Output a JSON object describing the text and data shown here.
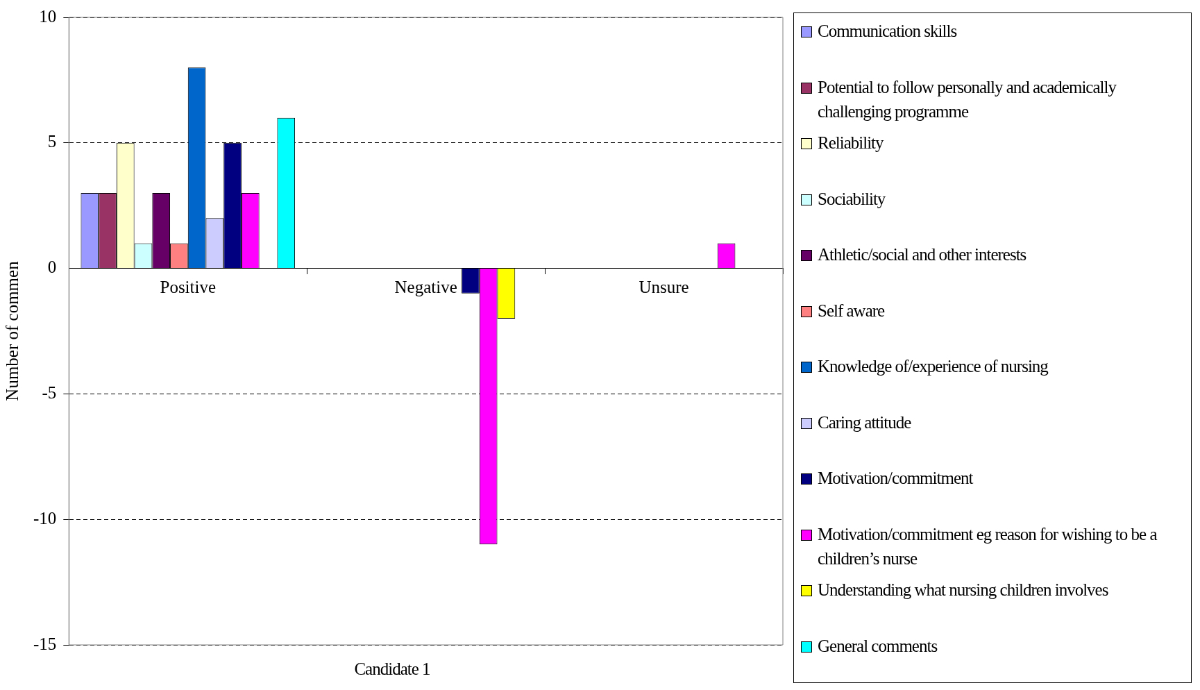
{
  "chart_data": {
    "type": "bar",
    "xlabel": "Candidate 1",
    "ylabel": "Number of commen",
    "categories": [
      "Positive",
      "Negative",
      "Unsure"
    ],
    "ylim": [
      -15,
      10
    ],
    "yticks": [
      -15,
      -10,
      -5,
      0,
      5,
      10
    ],
    "grid": "y",
    "line_style": "dashed",
    "legend": "right",
    "series": [
      {
        "name": "Communication skills",
        "color": "#9999ff",
        "values": [
          3,
          0,
          0
        ]
      },
      {
        "name": "Potential to follow personally and academically challenging programme",
        "color": "#993366",
        "values": [
          3,
          0,
          0
        ]
      },
      {
        "name": "Reliability",
        "color": "#ffffcc",
        "values": [
          5,
          0,
          0
        ]
      },
      {
        "name": "Sociability",
        "color": "#ccffff",
        "values": [
          1,
          0,
          0
        ]
      },
      {
        "name": "Athletic/social and other interests",
        "color": "#660066",
        "values": [
          3,
          0,
          0
        ]
      },
      {
        "name": "Self aware",
        "color": "#ff8080",
        "values": [
          1,
          0,
          0
        ]
      },
      {
        "name": "Knowledge of/experience of nursing",
        "color": "#0066cc",
        "values": [
          8,
          0,
          0
        ]
      },
      {
        "name": "Caring attitude",
        "color": "#ccccff",
        "values": [
          2,
          0,
          0
        ]
      },
      {
        "name": "Motivation/commitment",
        "color": "#000080",
        "values": [
          5,
          -1,
          0
        ]
      },
      {
        "name": "Motivation/commitment eg reason for wishing to be a children’s nurse",
        "color": "#ff00ff",
        "values": [
          3,
          -11,
          1
        ]
      },
      {
        "name": "Understanding what nursing children involves",
        "color": "#ffff00",
        "values": [
          0,
          -2,
          0
        ]
      },
      {
        "name": "General comments",
        "color": "#00ffff",
        "values": [
          6,
          0,
          0
        ]
      }
    ]
  }
}
